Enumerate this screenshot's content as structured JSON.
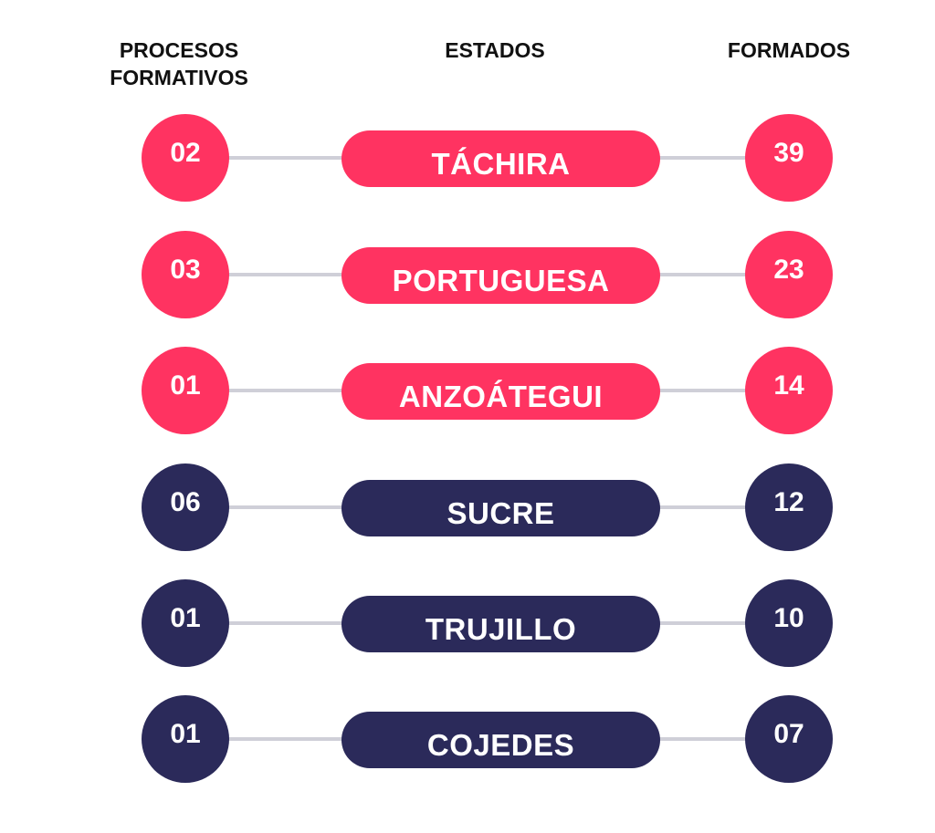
{
  "headers": {
    "left_line1": "PROCESOS",
    "left_line2": "FORMATIVOS",
    "middle": "ESTADOS",
    "right": "FORMADOS"
  },
  "colors": {
    "accent": "#ff3361",
    "dark": "#2b2a5a",
    "connector": "#cfcfd8"
  },
  "rows": [
    {
      "procesos": "02",
      "estado": "TÁCHIRA",
      "formados": "39",
      "color": "#ff3361"
    },
    {
      "procesos": "03",
      "estado": "PORTUGUESA",
      "formados": "23",
      "color": "#ff3361"
    },
    {
      "procesos": "01",
      "estado": "ANZOÁTEGUI",
      "formados": "14",
      "color": "#ff3361"
    },
    {
      "procesos": "06",
      "estado": "SUCRE",
      "formados": "12",
      "color": "#2b2a5a"
    },
    {
      "procesos": "01",
      "estado": "TRUJILLO",
      "formados": "10",
      "color": "#2b2a5a"
    },
    {
      "procesos": "01",
      "estado": "COJEDES",
      "formados": "07",
      "color": "#2b2a5a"
    }
  ]
}
